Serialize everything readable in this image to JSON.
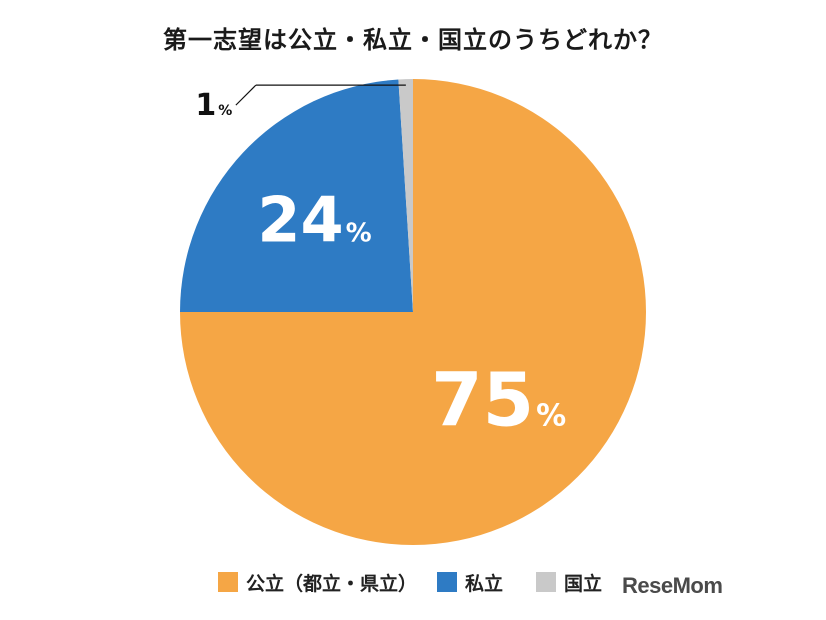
{
  "chart_data": {
    "type": "pie",
    "title": "第一志望は公立・私立・国立のうちどれか？",
    "slices": [
      {
        "label": "公立（都立・県立）",
        "value": 75,
        "value_label": "75",
        "unit": "%",
        "color": "#f5a645"
      },
      {
        "label": "私立",
        "value": 24,
        "value_label": "24",
        "unit": "%",
        "color": "#2e7bc4"
      },
      {
        "label": "国立",
        "value": 1,
        "value_label": "1",
        "unit": "%",
        "color": "#c9c9c9"
      }
    ],
    "legend_position": "bottom"
  },
  "brand": {
    "logo_text": "ReseMom"
  }
}
